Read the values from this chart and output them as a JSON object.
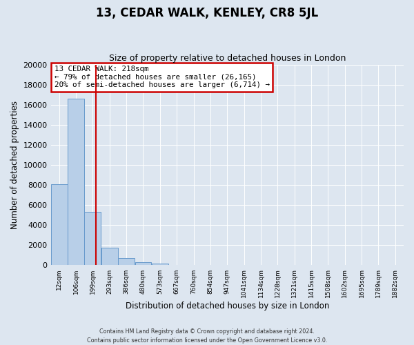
{
  "title": "13, CEDAR WALK, KENLEY, CR8 5JL",
  "subtitle": "Size of property relative to detached houses in London",
  "xlabel": "Distribution of detached houses by size in London",
  "ylabel": "Number of detached properties",
  "bar_labels": [
    "12sqm",
    "106sqm",
    "199sqm",
    "293sqm",
    "386sqm",
    "480sqm",
    "573sqm",
    "667sqm",
    "760sqm",
    "854sqm",
    "947sqm",
    "1041sqm",
    "1134sqm",
    "1228sqm",
    "1321sqm",
    "1415sqm",
    "1508sqm",
    "1602sqm",
    "1695sqm",
    "1789sqm",
    "1882sqm"
  ],
  "bar_values": [
    8050,
    16600,
    5300,
    1750,
    750,
    280,
    200,
    0,
    0,
    0,
    0,
    0,
    0,
    0,
    0,
    0,
    0,
    0,
    0,
    0,
    0
  ],
  "bar_color": "#b8cfe8",
  "bar_edge_color": "#6699cc",
  "ylim": [
    0,
    20000
  ],
  "yticks": [
    0,
    2000,
    4000,
    6000,
    8000,
    10000,
    12000,
    14000,
    16000,
    18000,
    20000
  ],
  "property_line_index": 1.27,
  "property_line_color": "#cc0000",
  "annotation_title": "13 CEDAR WALK: 218sqm",
  "annotation_line1": "← 79% of detached houses are smaller (26,165)",
  "annotation_line2": "20% of semi-detached houses are larger (6,714) →",
  "annotation_box_color": "#cc0000",
  "footnote1": "Contains HM Land Registry data © Crown copyright and database right 2024.",
  "footnote2": "Contains public sector information licensed under the Open Government Licence v3.0.",
  "background_color": "#dde6f0",
  "plot_bg_color": "#dde6f0",
  "grid_color": "#ffffff",
  "title_fontsize": 12,
  "subtitle_fontsize": 9
}
